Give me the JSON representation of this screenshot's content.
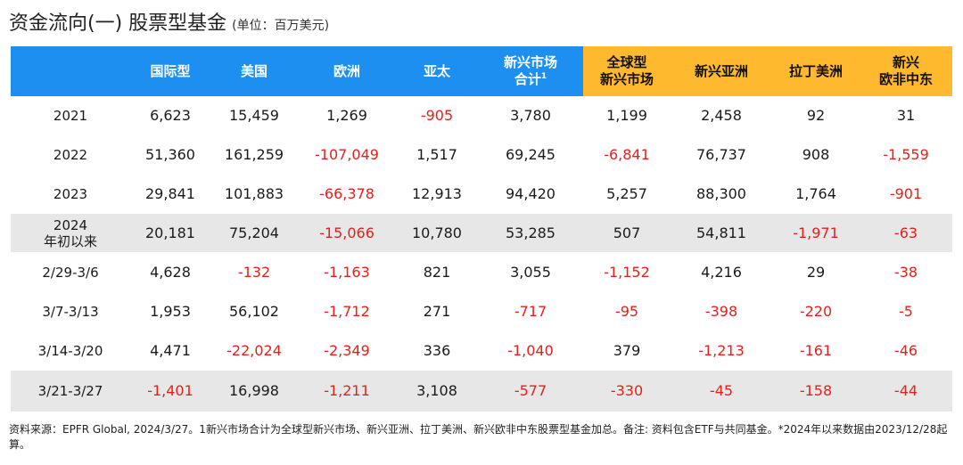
{
  "title": {
    "main": "资金流向(一) 股票型基金",
    "unit": "(单位：百万美元)"
  },
  "colors": {
    "header_blue": "#1d8ff0",
    "header_orange": "#ffb92e",
    "negative": "#e3211c",
    "band": "#e7e7e7"
  },
  "table": {
    "headers": [
      {
        "l1": "",
        "l2": "",
        "sup": ""
      },
      {
        "l1": "国际型",
        "l2": "",
        "sup": ""
      },
      {
        "l1": "美国",
        "l2": "",
        "sup": ""
      },
      {
        "l1": "欧洲",
        "l2": "",
        "sup": ""
      },
      {
        "l1": "亚太",
        "l2": "",
        "sup": ""
      },
      {
        "l1": "新兴市场",
        "l2": "合计",
        "sup": "1"
      },
      {
        "l1": "全球型",
        "l2": "新兴市场",
        "sup": ""
      },
      {
        "l1": "新兴亚洲",
        "l2": "",
        "sup": ""
      },
      {
        "l1": "拉丁美洲",
        "l2": "",
        "sup": ""
      },
      {
        "l1": "新兴",
        "l2": "欧非中东",
        "sup": ""
      }
    ],
    "rows": [
      {
        "label1": "2021",
        "label2": "",
        "cells": [
          "6,623",
          "15,459",
          "1,269",
          "-905",
          "3,780",
          "1,199",
          "2,458",
          "92",
          "31"
        ]
      },
      {
        "label1": "2022",
        "label2": "",
        "cells": [
          "51,360",
          "161,259",
          "-107,049",
          "1,517",
          "69,245",
          "-6,841",
          "76,737",
          "908",
          "-1,559"
        ]
      },
      {
        "label1": "2023",
        "label2": "",
        "cells": [
          "29,841",
          "101,883",
          "-66,378",
          "12,913",
          "94,420",
          "5,257",
          "88,300",
          "1,764",
          "-901"
        ]
      },
      {
        "label1": "2024",
        "label2": "年初以来",
        "cells": [
          "20,181",
          "75,204",
          "-15,066",
          "10,780",
          "53,285",
          "507",
          "54,811",
          "-1,971",
          "-63"
        ]
      },
      {
        "label1": "2/29-3/6",
        "label2": "",
        "cells": [
          "4,628",
          "-132",
          "-1,163",
          "821",
          "3,055",
          "-1,152",
          "4,216",
          "29",
          "-38"
        ]
      },
      {
        "label1": "3/7-3/13",
        "label2": "",
        "cells": [
          "1,953",
          "56,102",
          "-1,712",
          "271",
          "-717",
          "-95",
          "-398",
          "-220",
          "-5"
        ]
      },
      {
        "label1": "3/14-3/20",
        "label2": "",
        "cells": [
          "4,471",
          "-22,024",
          "-2,349",
          "336",
          "-1,040",
          "379",
          "-1,213",
          "-161",
          "-46"
        ]
      },
      {
        "label1": "3/21-3/27",
        "label2": "",
        "cells": [
          "-1,401",
          "16,998",
          "-1,211",
          "3,108",
          "-577",
          "-330",
          "-45",
          "-158",
          "-44"
        ]
      }
    ]
  },
  "footnote": "资料来源：EPFR Global, 2024/3/27。1新兴市场合计为全球型新兴市场、新兴亚洲、拉丁美洲、新兴欧非中东股票型基金加总。备注: 资料包含ETF与共同基金。*2024年以来数据由2023/12/28起算。"
}
